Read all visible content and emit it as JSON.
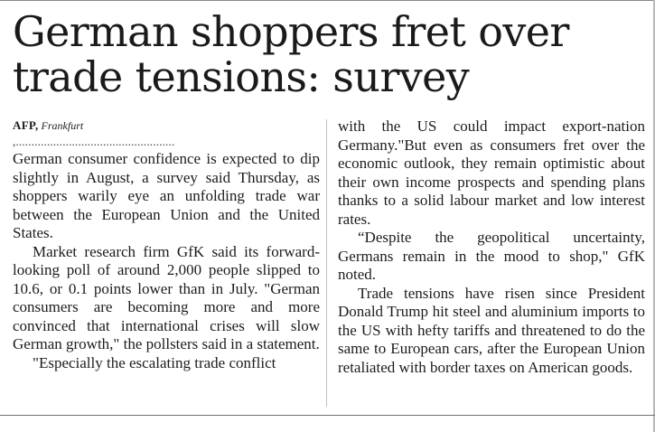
{
  "article": {
    "headline_line1": "German shoppers fret over",
    "headline_line2": "trade tensions: survey",
    "byline_agency": "AFP,",
    "byline_city": "Frankfurt",
    "byline_rule": ",...................................................",
    "paragraphs_left": [
      "German consumer confidence is expected to dip slightly in August, a survey said Thursday, as shoppers warily eye an unfolding trade war between the European Union and the United States.",
      "Market research firm GfK said its forward-looking poll of around 2,000 people slipped to 10.6, or 0.1 points lower than in July. \"German consumers are becoming more and more convinced that international crises will slow German growth,\" the pollsters said in a statement.",
      "\"Especially the escalating trade conflict"
    ],
    "paragraphs_right": [
      "with the US could impact export-nation Germany.\"But even as consumers fret over the economic outlook, they remain optimistic about their own income prospects and spending plans thanks to a solid labour market and low interest rates.",
      "“Despite the geopolitical uncertainty, Germans remain in the mood to shop,\" GfK noted.",
      "Trade tensions have risen since President Donald Trump hit steel and aluminium imports to the US with hefty tariffs and threatened to do the same to European cars, after the European Union retaliated with border taxes on American goods."
    ]
  }
}
